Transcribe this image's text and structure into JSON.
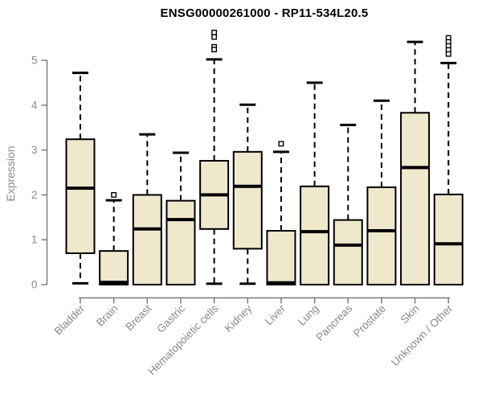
{
  "title": "ENSG00000261000 - RP11-534L20.5",
  "chart_data": {
    "type": "boxplot",
    "title": "ENSG00000261000 - RP11-534L20.5",
    "xlabel": "",
    "ylabel": "Expression",
    "ylim": [
      0,
      5
    ],
    "yticks": [
      0,
      1,
      2,
      3,
      4,
      5
    ],
    "grid": false,
    "legend": "none",
    "categories": [
      "Bladder",
      "Brain",
      "Breast",
      "Gastric",
      "Hematopoietic cells",
      "Kidney",
      "Liver",
      "Lung",
      "Pancreas",
      "Prostate",
      "Skin",
      "Unknown / Other"
    ],
    "boxes": [
      {
        "category": "Bladder",
        "whisker_low": 0.03,
        "q1": 0.7,
        "median": 2.15,
        "q3": 3.24,
        "whisker_high": 4.72,
        "outliers": []
      },
      {
        "category": "Brain",
        "whisker_low": 0,
        "q1": 0,
        "median": 0.05,
        "q3": 0.75,
        "whisker_high": 1.88,
        "outliers": [
          2.0
        ]
      },
      {
        "category": "Breast",
        "whisker_low": 0,
        "q1": 0,
        "median": 1.24,
        "q3": 2.0,
        "whisker_high": 3.35,
        "outliers": []
      },
      {
        "category": "Gastric",
        "whisker_low": 0,
        "q1": 0,
        "median": 1.45,
        "q3": 1.87,
        "whisker_high": 2.94,
        "outliers": []
      },
      {
        "category": "Hematopoietic cells",
        "whisker_low": 0.02,
        "q1": 1.24,
        "median": 2.0,
        "q3": 2.76,
        "whisker_high": 5.02,
        "outliers": [
          5.62,
          5.52,
          5.3,
          5.24
        ]
      },
      {
        "category": "Kidney",
        "whisker_low": 0.02,
        "q1": 0.8,
        "median": 2.19,
        "q3": 2.96,
        "whisker_high": 4.01,
        "outliers": []
      },
      {
        "category": "Liver",
        "whisker_low": 0,
        "q1": 0,
        "median": 0.04,
        "q3": 1.2,
        "whisker_high": 2.96,
        "outliers": [
          3.14
        ]
      },
      {
        "category": "Lung",
        "whisker_low": 0,
        "q1": 0,
        "median": 1.18,
        "q3": 2.19,
        "whisker_high": 4.5,
        "outliers": []
      },
      {
        "category": "Pancreas",
        "whisker_low": 0,
        "q1": 0,
        "median": 0.88,
        "q3": 1.44,
        "whisker_high": 3.56,
        "outliers": []
      },
      {
        "category": "Prostate",
        "whisker_low": 0,
        "q1": 0,
        "median": 1.2,
        "q3": 2.17,
        "whisker_high": 4.1,
        "outliers": []
      },
      {
        "category": "Skin",
        "whisker_low": 0,
        "q1": 0,
        "median": 2.61,
        "q3": 3.83,
        "whisker_high": 5.41,
        "outliers": []
      },
      {
        "category": "Unknown / Other",
        "whisker_low": 0,
        "q1": 0,
        "median": 0.91,
        "q3": 2.01,
        "whisker_high": 4.94,
        "outliers": [
          5.5,
          5.41,
          5.32,
          5.23,
          5.14
        ]
      }
    ],
    "colors": {
      "box_fill": "#EEE8CD",
      "box_border": "#000000",
      "median": "#000000",
      "whisker": "#000000",
      "outlier_stroke": "#000000",
      "outlier_fill": "#ffffff",
      "axis": "#7d7d7d",
      "tick_label": "#8a8a8a",
      "title": "#000000"
    }
  }
}
